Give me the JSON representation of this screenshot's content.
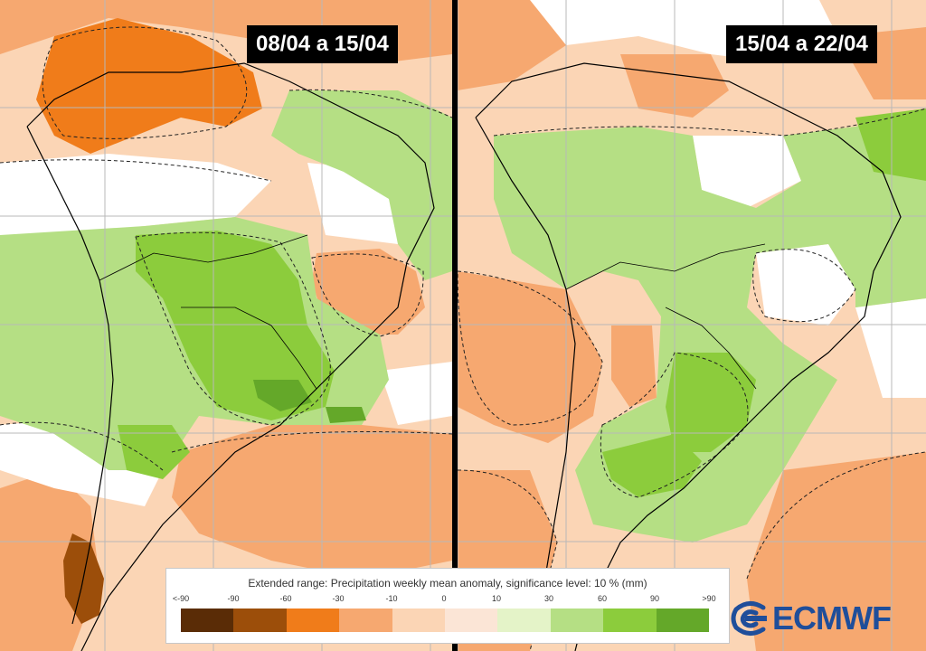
{
  "panels": [
    {
      "period": "08/04 a 15/04"
    },
    {
      "period": "15/04 a 22/04"
    }
  ],
  "legend": {
    "title": "Extended range: Precipitation weekly mean anomaly, significance level: 10 % (mm)",
    "ticks": [
      "<-90",
      "-90",
      "-60",
      "-30",
      "-10",
      "0",
      "10",
      "30",
      "60",
      "90",
      ">90"
    ],
    "colors": [
      "#5a2c06",
      "#9c4e0a",
      "#f07c1a",
      "#f6a870",
      "#fbd5b5",
      "#fbe5d6",
      "#e4f3c8",
      "#b5df84",
      "#8ccc3c",
      "#64a829",
      "#4a7a1c"
    ]
  },
  "logo": {
    "text": "ECMWF",
    "icon": "ecmwf-logo-icon",
    "color": "#1f4e9a"
  },
  "palette": {
    "dry_strong": "#f07c1a",
    "dry": "#f6a870",
    "dry_light": "#fbd5b5",
    "neutral": "#ffffff",
    "wet_light": "#b5df84",
    "wet": "#8ccc3c",
    "wet_strong": "#64a829",
    "grid": "#b8b8b8",
    "coastline": "#000000"
  }
}
